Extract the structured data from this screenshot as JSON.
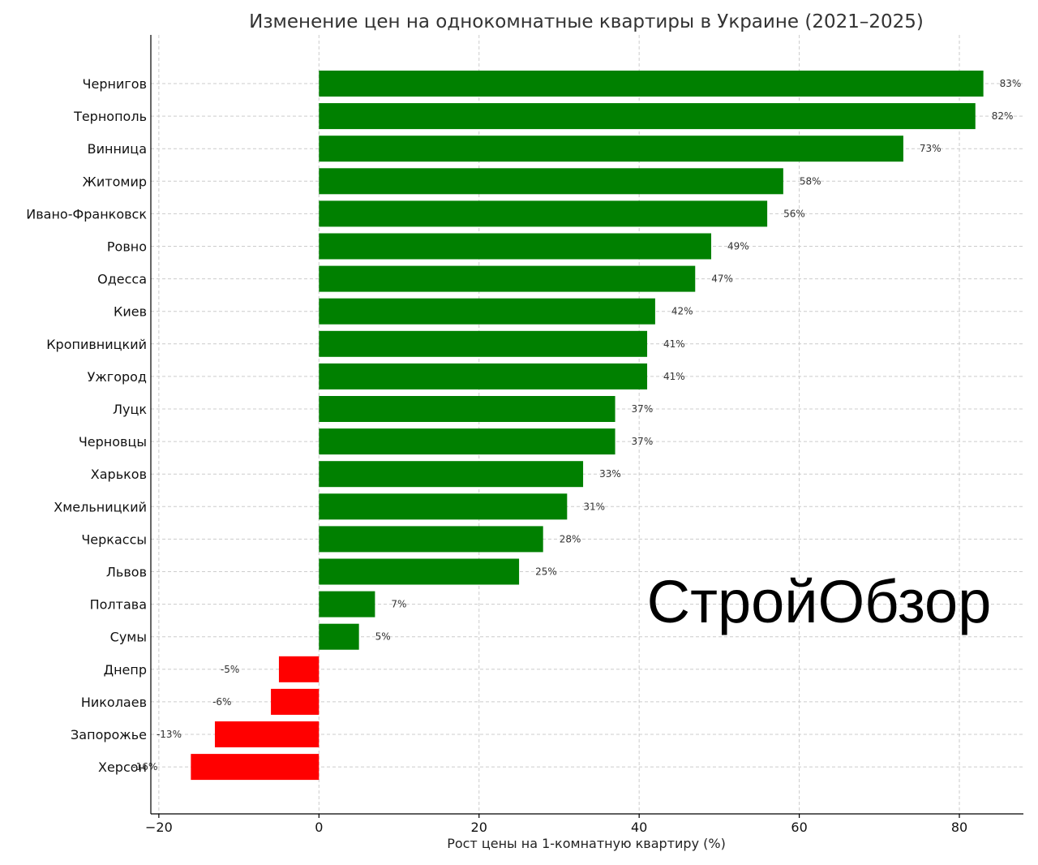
{
  "chart_data": {
    "type": "bar",
    "orientation": "horizontal",
    "title": "Изменение цен на однокомнатные квартиры в Украине (2021–2025)",
    "xlabel": "Рост цены на 1-комнатную квартиру (%)",
    "ylabel": "",
    "xlim": [
      -21,
      88
    ],
    "xticks": [
      -20,
      0,
      20,
      40,
      60,
      80
    ],
    "xtick_labels": [
      "−20",
      "0",
      "20",
      "40",
      "60",
      "80"
    ],
    "grid": true,
    "positive_color": "#008000",
    "negative_color": "#ff0000",
    "value_suffix": "%",
    "categories": [
      "Чернигов",
      "Тернополь",
      "Винница",
      "Житомир",
      "Ивано-Франковск",
      "Ровно",
      "Одесса",
      "Киев",
      "Кропивницкий",
      "Ужгород",
      "Луцк",
      "Черновцы",
      "Харьков",
      "Хмельницкий",
      "Черкассы",
      "Львов",
      "Полтава",
      "Сумы",
      "Днепр",
      "Николаев",
      "Запорожье",
      "Херсон"
    ],
    "values": [
      83,
      82,
      73,
      58,
      56,
      49,
      47,
      42,
      41,
      41,
      37,
      37,
      33,
      31,
      28,
      25,
      7,
      5,
      -5,
      -6,
      -13,
      -16
    ],
    "value_labels": [
      "83%",
      "82%",
      "73%",
      "58%",
      "56%",
      "49%",
      "47%",
      "42%",
      "41%",
      "41%",
      "37%",
      "37%",
      "33%",
      "31%",
      "28%",
      "25%",
      "7%",
      "5%",
      "-5%",
      "-6%",
      "-13%",
      "-16%"
    ]
  },
  "watermark": "СтройОбзор"
}
